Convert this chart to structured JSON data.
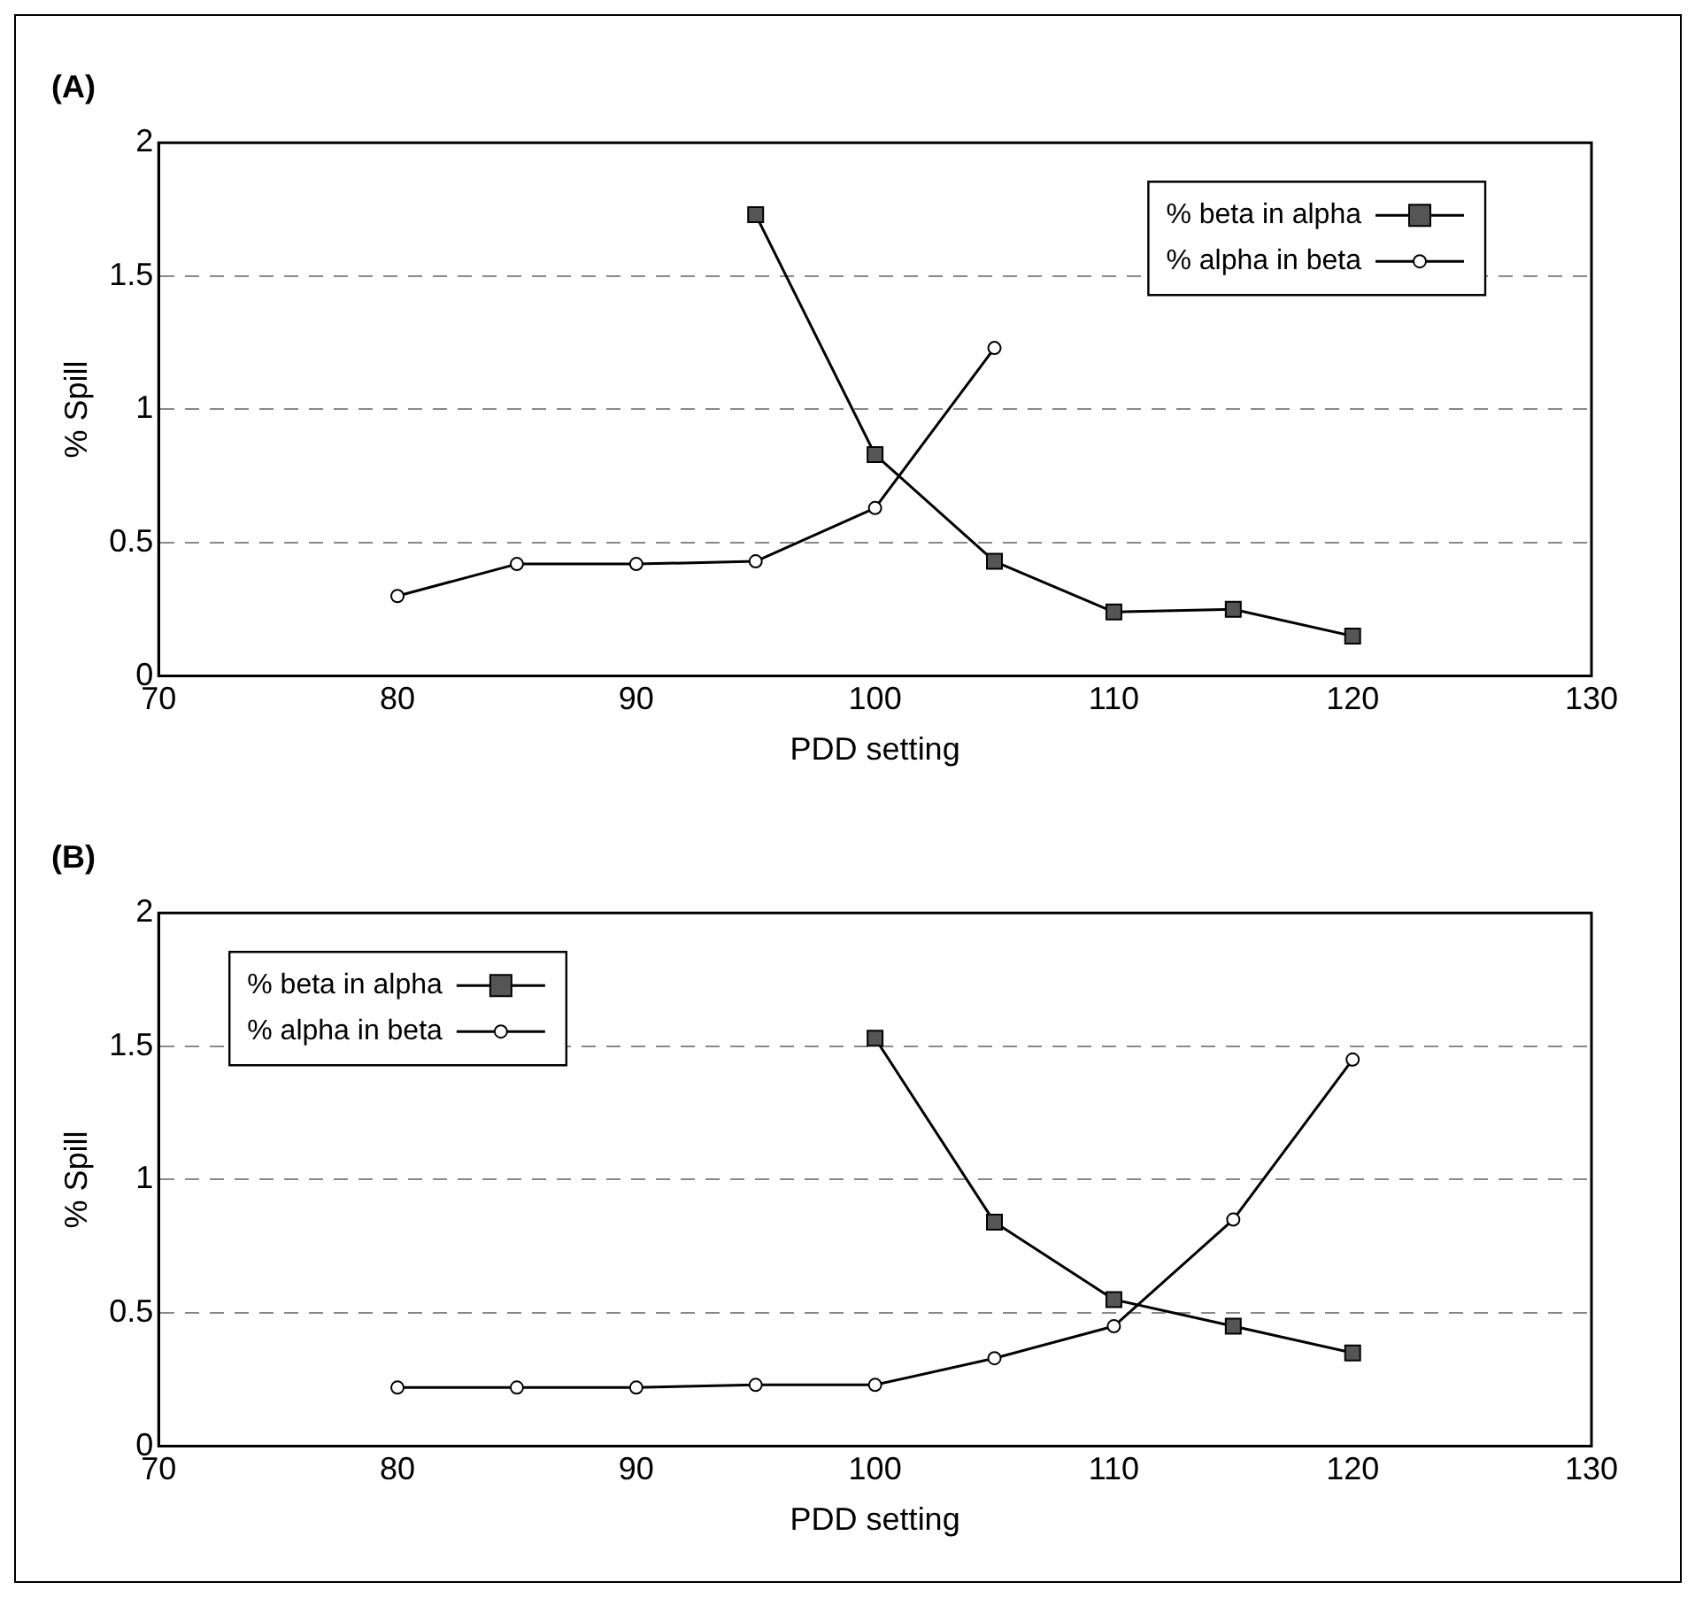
{
  "chart_data": [
    {
      "type": "line",
      "title": "(A)",
      "xlabel": "PDD setting",
      "ylabel": "% Spill",
      "x": [
        80,
        85,
        90,
        95,
        100,
        105,
        110,
        115,
        120
      ],
      "series": [
        {
          "name": "% beta in alpha",
          "color": "#000000",
          "marker": "square",
          "values": [
            null,
            null,
            null,
            1.73,
            0.83,
            0.43,
            0.24,
            0.25,
            0.15
          ]
        },
        {
          "name": "% alpha in beta",
          "color": "#000000",
          "marker": "circle",
          "values": [
            0.3,
            0.42,
            0.42,
            0.43,
            0.63,
            1.23,
            null,
            null,
            null
          ]
        }
      ],
      "xlim": [
        70,
        130
      ],
      "xticks": [
        70,
        80,
        90,
        100,
        110,
        120,
        130
      ],
      "ylim": [
        0,
        2
      ],
      "yticks": [
        0,
        0.5,
        1,
        1.5,
        2
      ],
      "grid": "y",
      "legend": "top right"
    },
    {
      "type": "line",
      "title": "(B)",
      "xlabel": "PDD setting",
      "ylabel": "% Spill",
      "x": [
        80,
        85,
        90,
        95,
        100,
        105,
        110,
        115,
        120
      ],
      "series": [
        {
          "name": "% beta in alpha",
          "color": "#000000",
          "marker": "square",
          "values": [
            null,
            null,
            null,
            null,
            1.53,
            0.84,
            0.55,
            0.45,
            0.35
          ]
        },
        {
          "name": "% alpha in beta",
          "color": "#000000",
          "marker": "circle",
          "values": [
            0.22,
            0.22,
            0.22,
            0.23,
            0.23,
            0.33,
            0.45,
            0.85,
            1.45
          ]
        }
      ],
      "xlim": [
        70,
        130
      ],
      "xticks": [
        70,
        80,
        90,
        100,
        110,
        120,
        130
      ],
      "ylim": [
        0,
        2
      ],
      "yticks": [
        0,
        0.5,
        1,
        1.5,
        2
      ],
      "grid": "y",
      "legend": "top left"
    }
  ]
}
